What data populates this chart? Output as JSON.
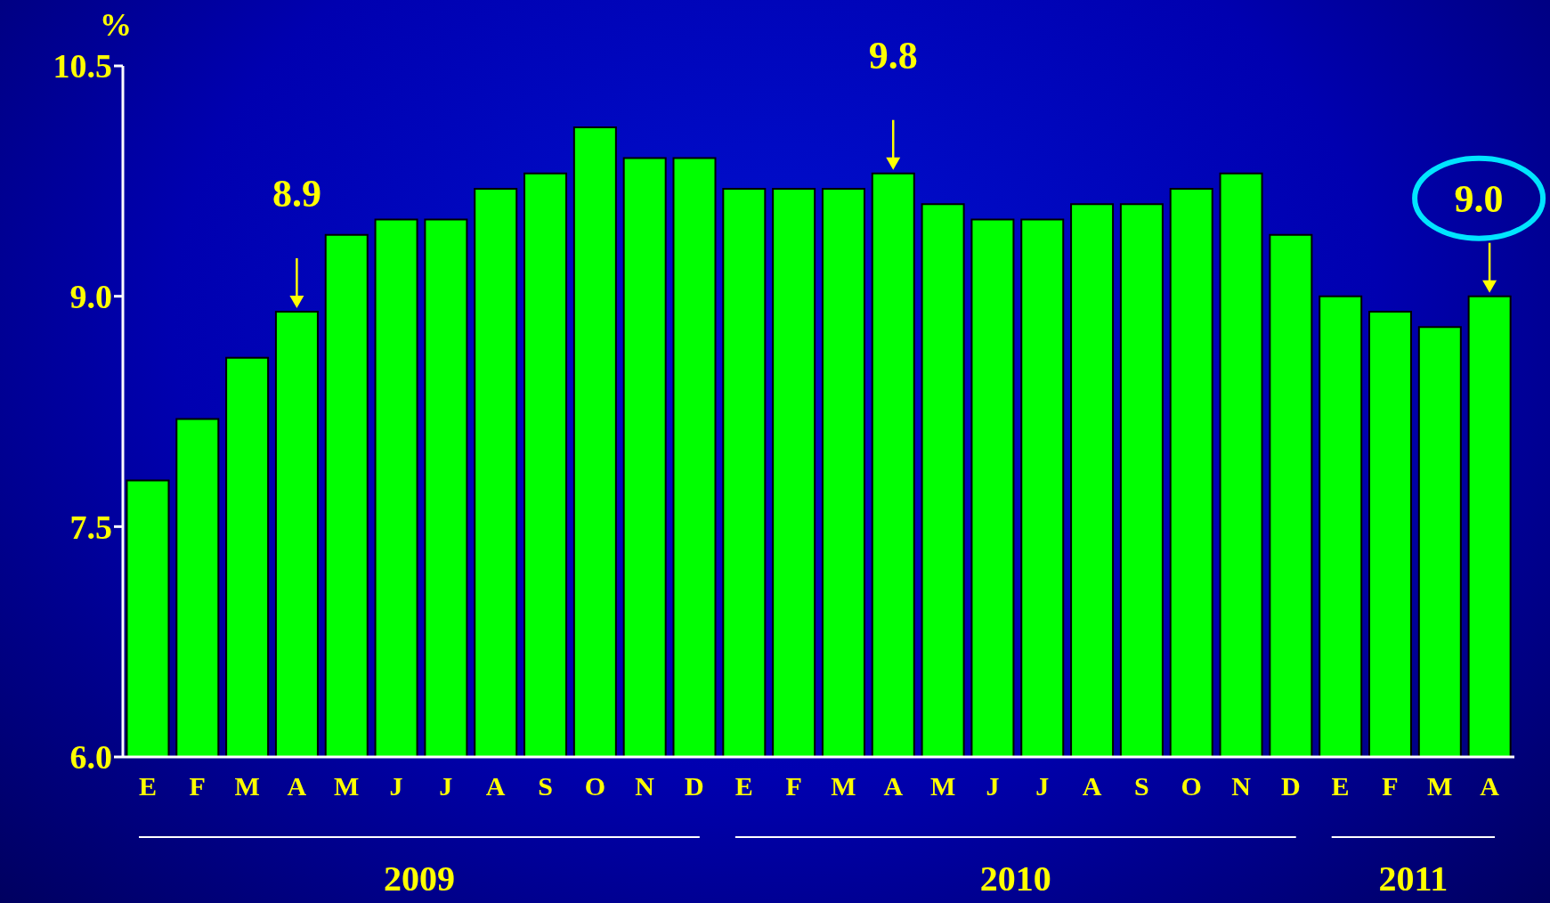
{
  "chart_data": {
    "type": "bar",
    "ylabel": "%",
    "categories": [
      "E",
      "F",
      "M",
      "A",
      "M",
      "J",
      "J",
      "A",
      "S",
      "O",
      "N",
      "D",
      "E",
      "F",
      "M",
      "A",
      "M",
      "J",
      "J",
      "A",
      "S",
      "O",
      "N",
      "D",
      "E",
      "F",
      "M",
      "A"
    ],
    "values": [
      7.8,
      8.2,
      8.6,
      8.9,
      9.4,
      9.5,
      9.5,
      9.7,
      9.8,
      10.1,
      9.9,
      9.9,
      9.7,
      9.7,
      9.7,
      9.8,
      9.6,
      9.5,
      9.5,
      9.6,
      9.6,
      9.7,
      9.8,
      9.4,
      9.0,
      8.9,
      8.8,
      9.0
    ],
    "color": "#00ff00",
    "ylim": [
      6,
      10.5
    ],
    "yticks": [
      {
        "value": 6,
        "label": "6.0"
      },
      {
        "value": 7.5,
        "label": "7.5"
      },
      {
        "value": 9,
        "label": "9.0"
      },
      {
        "value": 10.5,
        "label": "10.5"
      }
    ],
    "annotations": [
      "8.9",
      "9.8",
      "9.0",
      "2009",
      "2010",
      "2011"
    ]
  }
}
